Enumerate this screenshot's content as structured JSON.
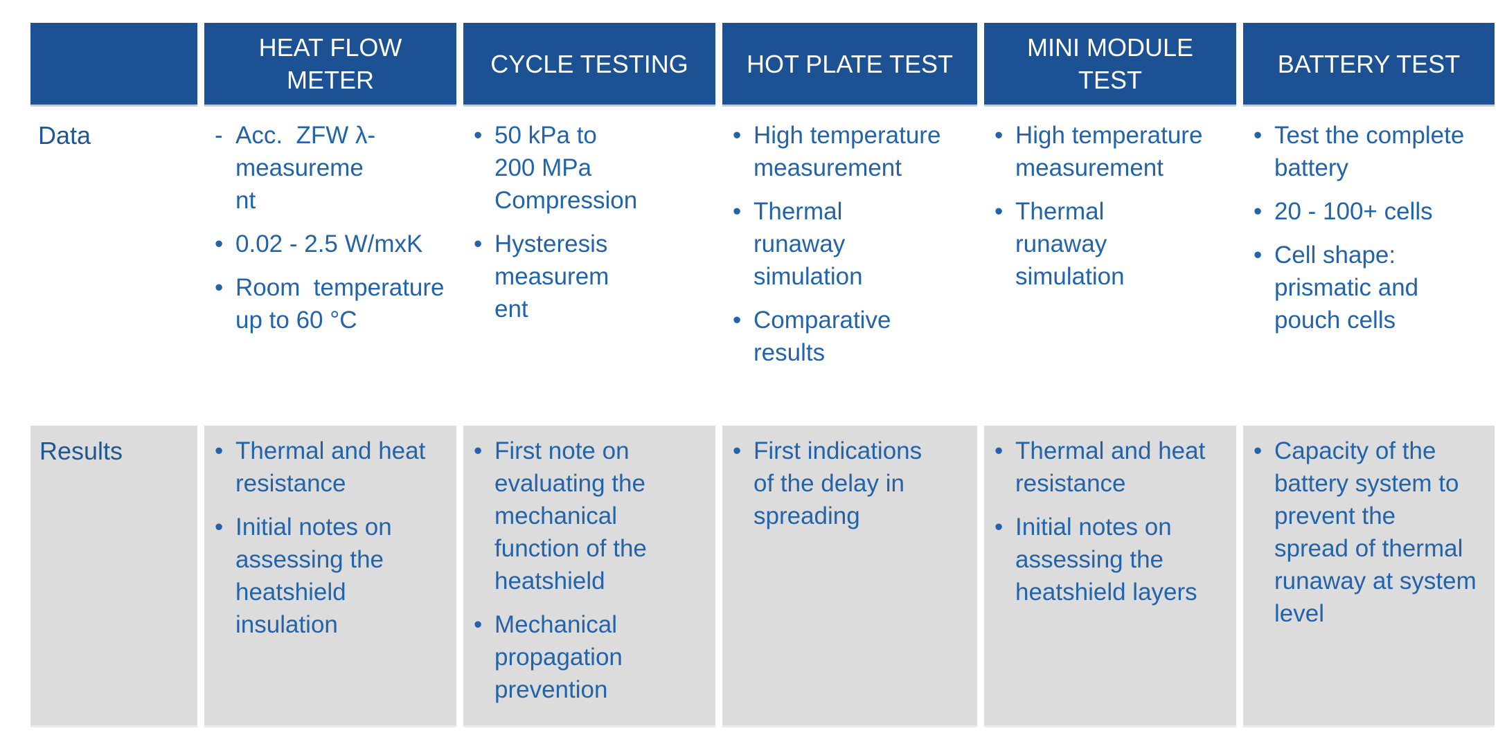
{
  "colors": {
    "header_bg": "#1C5293",
    "header_text": "#FFFFFF",
    "body_text": "#2263A9",
    "label_text": "#1E5796",
    "results_bg": "#DCDCDC",
    "page_bg": "#FFFFFF"
  },
  "table": {
    "row_labels": {
      "data": "Data",
      "results": "Results"
    },
    "columns": [
      {
        "header": "HEAT FLOW\nMETER",
        "data": [
          {
            "marker": "-",
            "text": "Acc.  ZFW λ-\nmeasureme\nnt"
          },
          {
            "marker": "•",
            "text": "0.02 - 2.5 W/mxK"
          },
          {
            "marker": "•",
            "text": "Room  temperature\nup to 60 °C"
          }
        ],
        "results": [
          {
            "marker": "•",
            "text": "Thermal and heat\nresistance"
          },
          {
            "marker": "•",
            "text": "Initial notes on\nassessing the\nheatshield\ninsulation"
          }
        ]
      },
      {
        "header": "CYCLE TESTING",
        "data": [
          {
            "marker": "•",
            "text": "50 kPa to\n200 MPa\nCompression"
          },
          {
            "marker": "•",
            "text": "Hysteresis\nmeasurem\nent"
          }
        ],
        "results": [
          {
            "marker": "•",
            "text": "First note on\nevaluating the\nmechanical\nfunction of the\nheatshield"
          },
          {
            "marker": "•",
            "text": "Mechanical\npropagation\nprevention"
          }
        ]
      },
      {
        "header": "HOT PLATE TEST",
        "data": [
          {
            "marker": "•",
            "text": "High temperature\nmeasurement"
          },
          {
            "marker": "•",
            "text": "Thermal\nrunaway\nsimulation"
          },
          {
            "marker": "•",
            "text": "Comparative\nresults"
          }
        ],
        "results": [
          {
            "marker": "•",
            "text": "First indications\nof the delay in\nspreading"
          }
        ]
      },
      {
        "header": "MINI MODULE\nTEST",
        "data": [
          {
            "marker": "•",
            "text": "High temperature\nmeasurement"
          },
          {
            "marker": "•",
            "text": "Thermal\nrunaway\nsimulation"
          }
        ],
        "results": [
          {
            "marker": "•",
            "text": "Thermal and heat\nresistance"
          },
          {
            "marker": "•",
            "text": "Initial notes on\nassessing the\nheatshield layers"
          }
        ]
      },
      {
        "header": "BATTERY TEST",
        "data": [
          {
            "marker": "•",
            "text": "Test the complete\nbattery"
          },
          {
            "marker": "•",
            "text": "20 - 100+ cells"
          },
          {
            "marker": "•",
            "text": "Cell shape:\nprismatic and\npouch cells"
          }
        ],
        "results": [
          {
            "marker": "•",
            "text": "Capacity of the\nbattery system to\nprevent the\nspread of thermal\nrunaway at system\nlevel"
          }
        ]
      }
    ]
  }
}
